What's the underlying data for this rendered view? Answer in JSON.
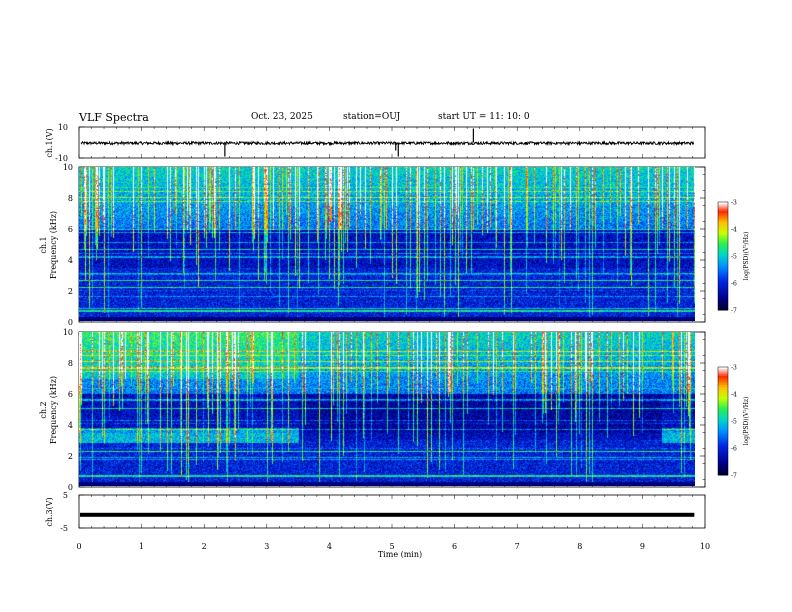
{
  "header": {
    "title": "VLF Spectra",
    "date": "Oct. 23, 2025",
    "station": "station=OUJ",
    "start": "start  UT =   11: 10: 0"
  },
  "colorbar": {
    "ticks": [
      "-3",
      "-4",
      "-5",
      "-6",
      "-7"
    ],
    "label": "log(PSD)(V²/Hz)",
    "stops": [
      "#ffffff",
      "#ff0000",
      "#ffa000",
      "#ffff00",
      "#00ff00",
      "#00c8c8",
      "#0064ff",
      "#0000c8",
      "#000032"
    ]
  },
  "chart_data": [
    {
      "type": "line",
      "panel": "ch1-waveform",
      "ylabel": "ch.1(V)",
      "ylim": [
        -10,
        10
      ],
      "yticks": [
        "10",
        "-10"
      ],
      "xlim": [
        0,
        10
      ],
      "note": "noisy baseline near -0.5 V with spikes at ~2.3, ~5.1 and ~6.3 min"
    },
    {
      "type": "heatmap",
      "panel": "ch1-spectrogram",
      "ylabel": "ch.1",
      "ylabel2": "Frequency (kHz)",
      "ylim": [
        0,
        10
      ],
      "yticks": [
        "0",
        "2",
        "4",
        "6",
        "8",
        "10"
      ],
      "xlim": [
        0,
        9.83
      ],
      "color_range_log_psd": [
        -7,
        -3
      ]
    },
    {
      "type": "heatmap",
      "panel": "ch2-spectrogram",
      "ylabel": "ch.2",
      "ylabel2": "Frequency (kHz)",
      "ylim": [
        0,
        10
      ],
      "yticks": [
        "0",
        "2",
        "4",
        "6",
        "8",
        "10"
      ],
      "xlim": [
        0,
        9.83
      ],
      "color_range_log_psd": [
        -7,
        -3
      ],
      "note": "enhanced band 2.8-3.8 kHz for 0-3.5 min and 9.3-9.8 min"
    },
    {
      "type": "line",
      "panel": "ch3-waveform",
      "ylabel": "ch.3(V)",
      "ylim": [
        -5,
        5
      ],
      "yticks": [
        "5",
        "-5"
      ],
      "values_note": "flat line at about -1 V",
      "level": -1
    }
  ],
  "x_axis": {
    "label": "Time (min)",
    "ticks": [
      "0",
      "1",
      "2",
      "3",
      "4",
      "5",
      "6",
      "7",
      "8",
      "9",
      "10"
    ]
  }
}
